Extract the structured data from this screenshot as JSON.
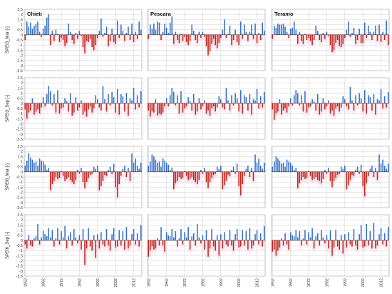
{
  "chart_data": {
    "type": "bar",
    "layout": "4x3 small multiples",
    "x": [
      1952,
      1953,
      1954,
      1955,
      1956,
      1957,
      1958,
      1959,
      1960,
      1961,
      1962,
      1963,
      1964,
      1965,
      1966,
      1967,
      1968,
      1969,
      1970,
      1971,
      1972,
      1973,
      1974,
      1975,
      1976,
      1977,
      1978,
      1979,
      1980,
      1981,
      1982,
      1983,
      1984,
      1985,
      1986,
      1987,
      1988,
      1989,
      1990,
      1991,
      1992,
      1993,
      1994,
      1995,
      1996,
      1997,
      1998,
      1999,
      2000,
      2001,
      2002,
      2003,
      2004,
      2005,
      2006,
      2007,
      2008,
      2009,
      2010,
      2011,
      2012,
      2013,
      2014,
      2015,
      2016
    ],
    "x_tick_labels": [
      "1952",
      "1962",
      "1972",
      "1982",
      "1992",
      "2002",
      "2012"
    ],
    "ylim": [
      -3.5,
      2.5
    ],
    "y_ticks": [
      -3.5,
      -3,
      -2.5,
      -2,
      -1.5,
      -1,
      -0.5,
      0,
      0.5,
      1,
      1.5,
      2,
      2.5
    ],
    "y_tick_labels": [
      "-3.5",
      "-3",
      "-2.5",
      "-2",
      "-1.5",
      "-1",
      "-0.5",
      "0",
      "0.5",
      "1",
      "1.5",
      "2",
      "2.5"
    ],
    "grid": true,
    "colors": {
      "positive": "#3a6fc4",
      "negative": "#c0281f",
      "negative_glow": "#f6c9dc",
      "grid": "#cfcfcf",
      "axis": "#333333"
    },
    "columns": [
      "Chieti",
      "Pescara",
      "Teramo"
    ],
    "row_labels": [
      "SPEI3_Mar [-]",
      "SPEI3_Sep [-]",
      "SPEI6_Mar [-]",
      "SPEI6_Sep [-]"
    ],
    "panels": [
      [
        {
          "values": [
            -0.5,
            1.3,
            0.8,
            1.2,
            0.6,
            0.9,
            1.1,
            1.3,
            0.3,
            -0.2,
            0.6,
            0.9,
            1.7,
            2.0,
            -1.0,
            0.4,
            -0.6,
            0.5,
            0.1,
            -0.7,
            -0.3,
            -0.5,
            -1.1,
            -0.8,
            1.1,
            0.3,
            -0.5,
            -0.9,
            0.2,
            -0.4,
            0.4,
            -0.1,
            -1.2,
            -1.8,
            -0.6,
            -0.7,
            -0.4,
            -1.2,
            -1.5,
            -1.0,
            -0.3,
            0.4,
            1.6,
            -0.2,
            0.2,
            0.8,
            -1.1,
            -0.6,
            0.6,
            -0.7,
            -0.9,
            1.4,
            -0.3,
            1.0,
            0.4,
            -0.6,
            0.2,
            0.8,
            -0.5,
            1.1,
            -0.7,
            0.3,
            -0.4,
            1.3,
            0.5
          ]
        },
        {
          "values": [
            -0.4,
            1.0,
            0.6,
            1.1,
            0.5,
            1.3,
            1.2,
            -0.5,
            0.3,
            1.1,
            0.7,
            0.2,
            1.2,
            1.8,
            -0.9,
            0.3,
            -0.5,
            -0.8,
            0.1,
            -0.6,
            -0.2,
            -0.7,
            -1.0,
            -0.6,
            1.0,
            0.4,
            -0.5,
            -0.8,
            0.3,
            -0.3,
            0.3,
            -0.2,
            -1.1,
            -2.0,
            -1.6,
            -0.9,
            -0.4,
            -1.0,
            -1.3,
            -0.8,
            -0.3,
            0.5,
            1.5,
            -0.3,
            0.1,
            0.9,
            -1.0,
            -0.5,
            0.5,
            -0.7,
            -1.0,
            1.3,
            -0.4,
            1.0,
            0.3,
            -0.6,
            0.3,
            1.0,
            -0.4,
            1.1,
            -0.8,
            0.2,
            -0.5,
            1.2,
            0.4
          ]
        },
        {
          "values": [
            -0.4,
            0.9,
            0.7,
            1.1,
            1.0,
            1.0,
            1.1,
            0.8,
            0.3,
            -0.3,
            0.6,
            0.7,
            1.3,
            0.5,
            -0.9,
            0.3,
            -0.6,
            -0.9,
            0.1,
            -0.5,
            -0.3,
            -0.6,
            -1.0,
            -0.5,
            0.9,
            0.4,
            -0.5,
            -0.7,
            0.2,
            -0.4,
            0.3,
            -0.1,
            -1.0,
            -1.7,
            -1.5,
            -0.8,
            -0.5,
            -1.1,
            -1.2,
            -0.9,
            -0.3,
            0.5,
            1.3,
            -0.2,
            0.2,
            0.7,
            -0.9,
            -0.5,
            0.6,
            -0.8,
            -0.8,
            1.2,
            -0.3,
            0.9,
            0.3,
            -0.5,
            0.3,
            0.9,
            -0.6,
            1.0,
            -0.7,
            0.3,
            -0.5,
            1.4,
            -1.0
          ]
        }
      ],
      [
        {
          "values": [
            -0.6,
            -1.5,
            -0.9,
            -0.7,
            0.5,
            -1.1,
            -0.8,
            -0.6,
            -1.0,
            -0.4,
            0.6,
            -0.3,
            0.9,
            1.7,
            1.2,
            -0.2,
            0.9,
            -0.9,
            1.3,
            -1.0,
            -0.5,
            -0.4,
            0.5,
            0.2,
            -0.8,
            1.0,
            -1.2,
            -0.9,
            0.6,
            -0.7,
            -0.4,
            0.3,
            -1.1,
            -0.8,
            -1.3,
            -0.6,
            -0.3,
            -0.9,
            -0.5,
            0.8,
            0.4,
            -0.4,
            -0.7,
            1.7,
            0.4,
            -0.8,
            0.9,
            -0.2,
            1.1,
            0.6,
            -0.9,
            1.4,
            -1.1,
            0.9,
            0.7,
            -0.8,
            1.0,
            -1.2,
            0.5,
            0.3,
            1.5,
            -0.6,
            0.8,
            -0.4,
            1.2
          ]
        },
        {
          "values": [
            -0.7,
            -1.3,
            -0.8,
            -0.9,
            0.4,
            -1.2,
            -1.0,
            -1.1,
            -0.9,
            -0.3,
            0.5,
            -0.3,
            0.8,
            1.5,
            1.1,
            -0.2,
            0.8,
            -1.0,
            1.2,
            -0.9,
            -0.5,
            -0.3,
            0.6,
            0.2,
            -0.7,
            0.9,
            -1.1,
            -0.8,
            0.5,
            -0.6,
            -0.3,
            0.3,
            -1.0,
            -0.7,
            -1.2,
            -0.5,
            -0.3,
            -0.8,
            -0.4,
            0.7,
            0.4,
            -0.4,
            -0.6,
            1.5,
            0.3,
            -0.7,
            0.8,
            -0.2,
            1.0,
            0.5,
            -0.8,
            1.3,
            -1.0,
            0.8,
            0.6,
            -0.7,
            0.9,
            -1.1,
            0.4,
            0.3,
            1.4,
            -0.5,
            0.7,
            -0.4,
            1.1
          ]
        },
        {
          "values": [
            -0.6,
            -1.6,
            -1.0,
            -0.8,
            0.4,
            -1.1,
            -0.7,
            -0.5,
            -0.9,
            -0.3,
            0.5,
            -0.2,
            0.8,
            1.3,
            1.0,
            -0.2,
            0.8,
            -0.8,
            1.2,
            -0.9,
            -0.4,
            -0.3,
            0.4,
            0.2,
            -0.7,
            0.9,
            -1.1,
            -0.8,
            0.5,
            -0.6,
            -0.3,
            0.3,
            -1.0,
            -0.7,
            -1.2,
            -0.5,
            -0.3,
            -0.8,
            -0.4,
            0.7,
            0.4,
            -0.3,
            -0.6,
            1.6,
            0.3,
            -0.7,
            0.8,
            -0.2,
            1.0,
            0.5,
            -0.8,
            1.3,
            -1.0,
            0.8,
            0.6,
            -0.7,
            0.9,
            -1.1,
            0.4,
            0.3,
            1.4,
            -0.5,
            0.7,
            -0.4,
            1.1
          ]
        }
      ],
      [
        {
          "values": [
            0.6,
            1.1,
            1.8,
            1.4,
            1.2,
            0.9,
            1.0,
            0.6,
            1.3,
            1.1,
            1.0,
            0.7,
            0.2,
            0.4,
            -1.8,
            -1.2,
            -0.9,
            -0.5,
            -0.7,
            -0.6,
            0.1,
            -0.4,
            -0.9,
            -0.7,
            -0.5,
            -0.8,
            -1.0,
            -1.2,
            -0.8,
            0.2,
            -0.2,
            0.4,
            -1.0,
            -1.6,
            -1.0,
            -0.6,
            -0.3,
            -0.2,
            0.5,
            0.3,
            0.6,
            -1.8,
            -1.4,
            -0.9,
            -0.3,
            -0.4,
            0.2,
            0.5,
            -0.2,
            0.8,
            -1.5,
            -2.5,
            -1.2,
            -0.4,
            0.3,
            0.6,
            -0.5,
            0.4,
            -0.9,
            1.8,
            0.9,
            1.3,
            0.6,
            0.3,
            0.9
          ]
        },
        {
          "values": [
            0.6,
            1.0,
            1.7,
            1.5,
            1.2,
            0.9,
            1.0,
            0.5,
            1.3,
            1.1,
            0.9,
            0.7,
            0.2,
            0.4,
            -1.7,
            -1.1,
            -0.9,
            -0.5,
            -0.7,
            -0.6,
            0.1,
            -0.4,
            -0.8,
            -0.7,
            -0.5,
            -0.8,
            -1.0,
            -1.2,
            -0.8,
            0.2,
            -0.2,
            0.4,
            -1.0,
            -1.6,
            -1.0,
            -0.6,
            -0.3,
            -0.2,
            0.5,
            0.3,
            0.6,
            -1.7,
            -1.3,
            -0.9,
            -0.3,
            -0.4,
            0.2,
            0.5,
            -0.2,
            0.8,
            -1.4,
            -2.3,
            -1.2,
            -0.4,
            0.3,
            0.6,
            -0.5,
            0.4,
            -0.9,
            1.7,
            0.9,
            1.3,
            0.6,
            0.3,
            0.9
          ]
        },
        {
          "values": [
            0.5,
            1.0,
            1.5,
            1.3,
            1.1,
            0.8,
            0.9,
            0.5,
            1.2,
            1.0,
            0.9,
            0.6,
            0.2,
            0.4,
            -1.6,
            -1.1,
            -0.8,
            -0.5,
            -0.7,
            -0.6,
            0.1,
            -0.4,
            -0.8,
            -0.7,
            -0.5,
            -0.8,
            -0.9,
            -1.1,
            -0.7,
            0.2,
            -0.2,
            0.4,
            -0.9,
            -1.5,
            -0.9,
            -0.6,
            -0.3,
            -0.2,
            0.5,
            0.3,
            0.6,
            -1.7,
            -1.3,
            -0.8,
            -0.3,
            -0.4,
            0.2,
            0.5,
            -0.2,
            0.7,
            -1.4,
            -2.4,
            -1.1,
            -0.4,
            0.3,
            0.6,
            -0.5,
            0.4,
            -0.8,
            1.7,
            0.8,
            1.2,
            0.6,
            0.3,
            0.8
          ]
        }
      ],
      [
        {
          "values": [
            -0.4,
            -0.8,
            0.5,
            -0.5,
            -0.6,
            0.2,
            0.4,
            1.6,
            -0.4,
            0.3,
            0.9,
            0.6,
            0.4,
            1.2,
            0.3,
            1.0,
            -0.6,
            0.2,
            1.2,
            -0.4,
            0.9,
            0.3,
            1.4,
            -0.8,
            0.4,
            0.8,
            -0.5,
            1.1,
            0.3,
            -0.3,
            0.5,
            -0.9,
            1.1,
            -2.4,
            -0.8,
            1.2,
            -0.6,
            -1.0,
            0.5,
            -1.7,
            0.6,
            -0.8,
            0.8,
            -0.4,
            -0.6,
            1.1,
            -0.5,
            -1.0,
            0.6,
            1.2,
            -0.7,
            -0.6,
            1.0,
            -0.5,
            0.9,
            -0.9,
            1.3,
            -0.8,
            -0.5,
            0.6,
            1.1,
            -0.4,
            0.7,
            -0.6,
            1.5
          ]
        },
        {
          "values": [
            -1.6,
            -1.0,
            -0.6,
            -0.9,
            -0.8,
            0.2,
            -0.5,
            1.3,
            -0.5,
            -1.1,
            0.8,
            0.5,
            0.4,
            1.1,
            0.3,
            0.9,
            -0.6,
            0.2,
            1.1,
            -0.4,
            0.8,
            0.3,
            1.3,
            -0.9,
            0.4,
            0.7,
            -0.5,
            1.6,
            0.3,
            -0.3,
            0.5,
            -0.9,
            1.0,
            -1.6,
            -0.8,
            1.1,
            -0.6,
            -1.0,
            0.5,
            -1.5,
            0.6,
            -0.8,
            0.8,
            -0.4,
            -0.6,
            1.0,
            -0.5,
            -1.0,
            0.6,
            1.1,
            -0.7,
            -0.6,
            1.0,
            -0.5,
            0.9,
            -0.9,
            1.2,
            -0.8,
            -0.5,
            0.6,
            1.0,
            -0.4,
            0.7,
            -0.6,
            1.4
          ]
        },
        {
          "values": [
            -1.1,
            -0.9,
            -1.5,
            -1.0,
            -0.7,
            0.2,
            -0.5,
            0.7,
            -0.4,
            -0.9,
            0.8,
            0.5,
            0.4,
            1.0,
            0.3,
            0.9,
            -0.5,
            0.2,
            1.0,
            -0.4,
            0.8,
            0.3,
            1.2,
            -0.8,
            0.4,
            0.7,
            -0.5,
            1.0,
            0.3,
            -0.3,
            0.5,
            -0.8,
            1.0,
            -1.5,
            -0.7,
            1.0,
            -0.6,
            -0.9,
            0.5,
            -1.3,
            0.6,
            -0.7,
            0.8,
            -0.4,
            -0.6,
            1.1,
            -0.5,
            -0.9,
            0.6,
            1.5,
            -0.7,
            -0.6,
            1.6,
            -0.5,
            0.9,
            -0.8,
            1.7,
            -0.8,
            -0.5,
            0.6,
            1.2,
            -0.4,
            0.7,
            -0.6,
            1.3
          ]
        }
      ]
    ]
  }
}
